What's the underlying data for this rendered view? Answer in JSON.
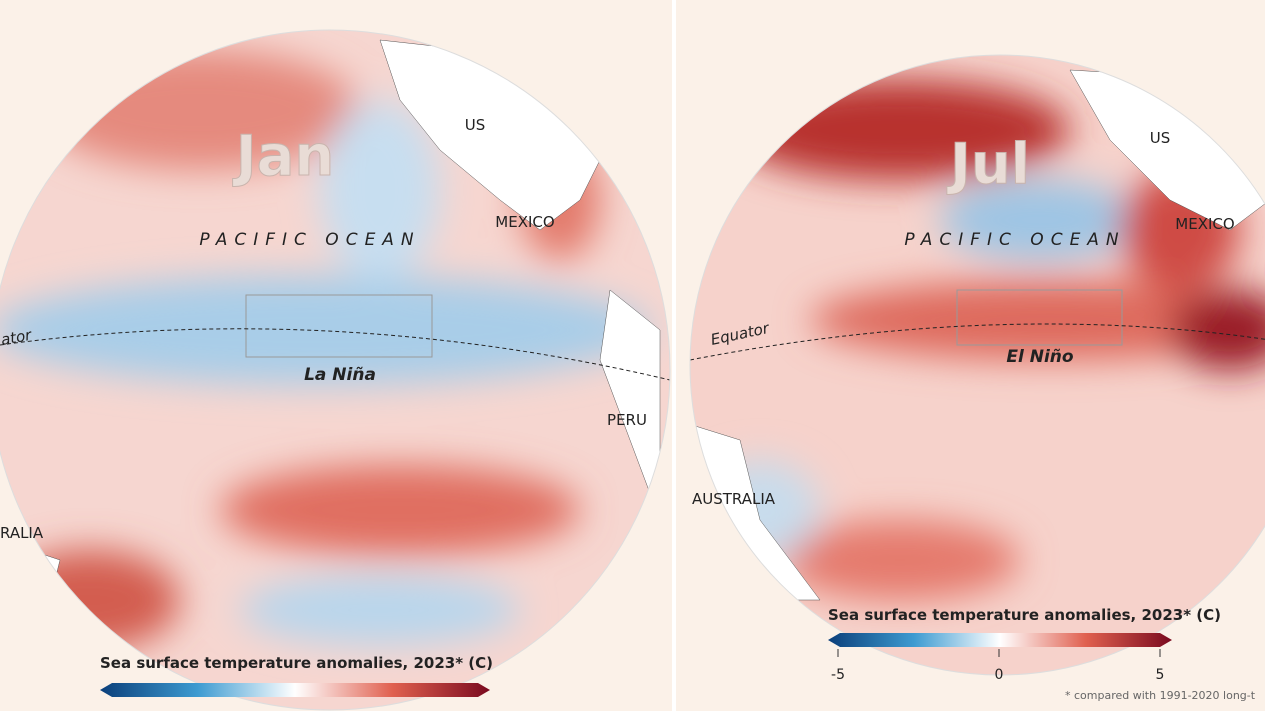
{
  "panels": [
    {
      "month": "Jan",
      "ocean_label": "PACIFIC OCEAN",
      "region_label": "La Niña",
      "equator_label": "ator",
      "places": [
        "US",
        "MEXICO",
        "PERU",
        "RALIA"
      ],
      "colorbar_title": "Sea surface temperature anomalies, 2023* (C)"
    },
    {
      "month": "Jul",
      "ocean_label": "PACIFIC OCEAN",
      "region_label": "El Niño",
      "equator_label": "Equator",
      "places": [
        "US",
        "MEXICO",
        "AUSTRALIA"
      ],
      "colorbar_title": "Sea surface temperature anomalies, 2023* (C)",
      "colorbar_ticks": [
        -5,
        0,
        5
      ],
      "footnote": "* compared with 1991-2020 long-t"
    }
  ]
}
